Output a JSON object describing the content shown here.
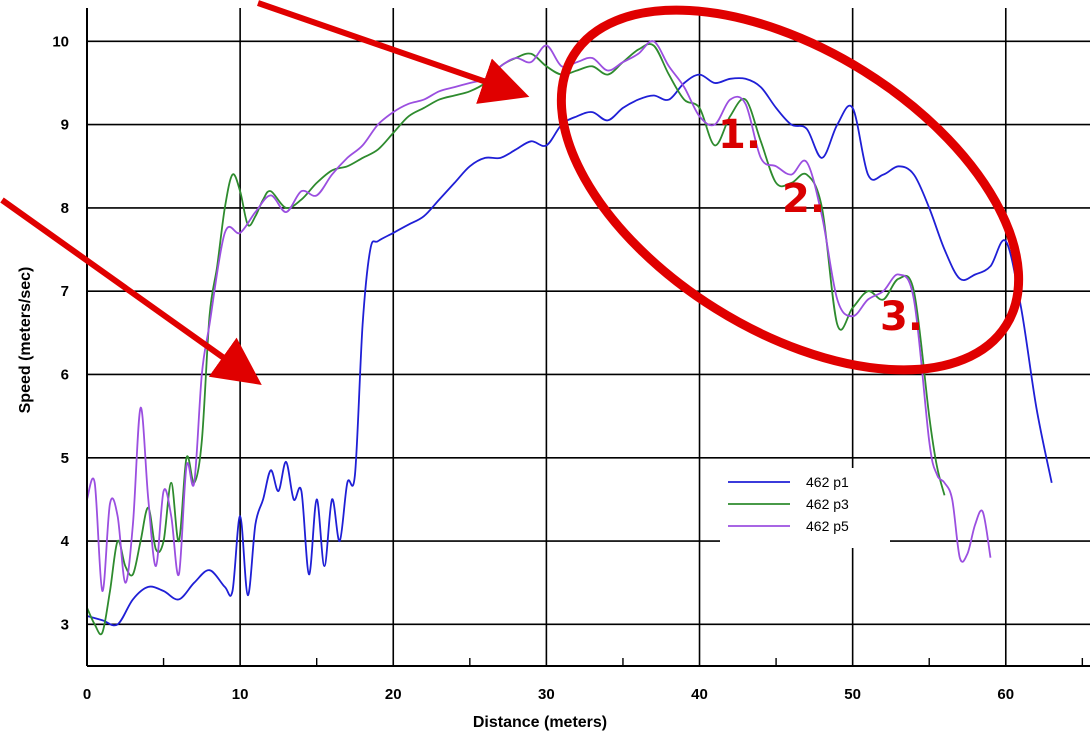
{
  "chart_data": {
    "type": "line",
    "title": "",
    "xlabel": "Distance (meters)",
    "ylabel": "Speed (meters/sec)",
    "xlim": [
      0,
      65.5
    ],
    "ylim": [
      2.5,
      10.4
    ],
    "xticks": [
      0,
      10,
      20,
      30,
      40,
      50,
      60
    ],
    "yticks": [
      3,
      4,
      5,
      6,
      7,
      8,
      9,
      10
    ],
    "grid": true,
    "legend_position": "lower-right",
    "series": [
      {
        "name": "462 p1",
        "color": "#1f1fd6",
        "x": [
          0,
          1,
          2,
          3,
          4,
          5,
          6,
          7,
          8,
          9,
          9.5,
          10,
          10.5,
          11,
          11.5,
          12,
          12.5,
          13,
          13.5,
          14,
          14.5,
          15,
          15.5,
          16,
          16.5,
          17,
          17.5,
          18,
          18.5,
          19,
          20,
          21,
          22,
          23,
          24,
          25,
          26,
          27,
          28,
          29,
          30,
          31,
          32,
          33,
          34,
          35,
          36,
          37,
          38,
          39,
          40,
          41,
          42,
          43,
          44,
          45,
          46,
          47,
          48,
          49,
          50,
          51,
          52,
          53,
          54,
          55,
          56,
          57,
          58,
          59,
          60,
          61,
          62,
          63
        ],
        "y": [
          3.1,
          3.05,
          3.0,
          3.3,
          3.45,
          3.4,
          3.3,
          3.5,
          3.65,
          3.45,
          3.4,
          4.3,
          3.35,
          4.2,
          4.5,
          4.85,
          4.6,
          4.95,
          4.5,
          4.6,
          3.6,
          4.5,
          3.7,
          4.5,
          4.0,
          4.7,
          4.8,
          6.6,
          7.5,
          7.6,
          7.7,
          7.8,
          7.9,
          8.1,
          8.3,
          8.5,
          8.6,
          8.6,
          8.7,
          8.8,
          8.75,
          9.0,
          9.1,
          9.15,
          9.05,
          9.2,
          9.3,
          9.35,
          9.3,
          9.5,
          9.6,
          9.5,
          9.55,
          9.55,
          9.45,
          9.2,
          9.0,
          8.95,
          8.6,
          9.0,
          9.2,
          8.4,
          8.4,
          8.5,
          8.4,
          8.0,
          7.5,
          7.15,
          7.2,
          7.3,
          7.6,
          6.8,
          5.6,
          4.7
        ]
      },
      {
        "name": "462 p3",
        "color": "#2e8b2e",
        "x": [
          0,
          0.5,
          1,
          1.5,
          2,
          2.5,
          3,
          3.5,
          4,
          4.5,
          5,
          5.5,
          6,
          6.5,
          7,
          7.5,
          8,
          8.5,
          9,
          9.5,
          10,
          10.5,
          11,
          11.5,
          12,
          13,
          14,
          15,
          16,
          17,
          18,
          19,
          20,
          21,
          22,
          23,
          24,
          25,
          26,
          27,
          28,
          29,
          30,
          31,
          32,
          33,
          34,
          35,
          36,
          37,
          38,
          39,
          40,
          41,
          42,
          43,
          44,
          45,
          46,
          47,
          48,
          49,
          50,
          51,
          52,
          53,
          54,
          55,
          55.5,
          56
        ],
        "y": [
          3.2,
          3.0,
          2.9,
          3.4,
          4.0,
          3.7,
          3.6,
          4.0,
          4.4,
          3.9,
          4.0,
          4.7,
          4.0,
          5.0,
          4.7,
          5.2,
          6.7,
          7.3,
          8.0,
          8.4,
          8.2,
          7.8,
          7.9,
          8.1,
          8.2,
          8.0,
          8.1,
          8.3,
          8.45,
          8.5,
          8.6,
          8.7,
          8.9,
          9.1,
          9.2,
          9.3,
          9.35,
          9.4,
          9.5,
          9.7,
          9.8,
          9.85,
          9.7,
          9.6,
          9.65,
          9.7,
          9.6,
          9.75,
          9.9,
          9.95,
          9.6,
          9.3,
          9.2,
          8.75,
          9.1,
          9.3,
          8.8,
          8.3,
          8.3,
          8.4,
          8.0,
          6.6,
          6.8,
          7.0,
          6.9,
          7.15,
          7.0,
          5.5,
          4.9,
          4.55
        ]
      },
      {
        "name": "462 p5",
        "color": "#9b4fe0",
        "x": [
          0,
          0.5,
          1,
          1.5,
          2,
          2.5,
          3,
          3.5,
          4,
          4.5,
          5,
          5.5,
          6,
          6.5,
          7,
          7.5,
          8,
          9,
          10,
          11,
          12,
          13,
          14,
          15,
          16,
          17,
          18,
          19,
          20,
          21,
          22,
          23,
          24,
          25,
          26,
          27,
          28,
          29,
          30,
          31,
          32,
          33,
          34,
          35,
          36,
          37,
          38,
          39,
          40,
          41,
          42,
          43,
          44,
          45,
          46,
          47,
          48,
          49,
          50,
          51,
          52,
          53,
          54,
          55,
          55.5,
          56,
          56.5,
          57,
          57.5,
          58,
          58.5,
          59
        ],
        "y": [
          4.5,
          4.7,
          3.4,
          4.45,
          4.3,
          3.5,
          4.2,
          5.6,
          4.5,
          3.7,
          4.6,
          4.3,
          3.6,
          4.9,
          4.7,
          6.0,
          6.6,
          7.7,
          7.7,
          7.95,
          8.15,
          7.95,
          8.2,
          8.15,
          8.4,
          8.6,
          8.75,
          9.0,
          9.15,
          9.25,
          9.3,
          9.4,
          9.45,
          9.5,
          9.55,
          9.7,
          9.8,
          9.75,
          9.95,
          9.7,
          9.75,
          9.8,
          9.65,
          9.75,
          9.85,
          10.0,
          9.7,
          9.45,
          9.1,
          9.0,
          9.3,
          9.25,
          8.6,
          8.5,
          8.4,
          8.55,
          7.9,
          6.9,
          6.7,
          6.9,
          7.0,
          7.2,
          6.9,
          5.2,
          4.8,
          4.7,
          4.5,
          3.8,
          3.85,
          4.2,
          4.35,
          3.8
        ]
      }
    ],
    "annotations": [
      "1.",
      "2.",
      "3."
    ]
  }
}
